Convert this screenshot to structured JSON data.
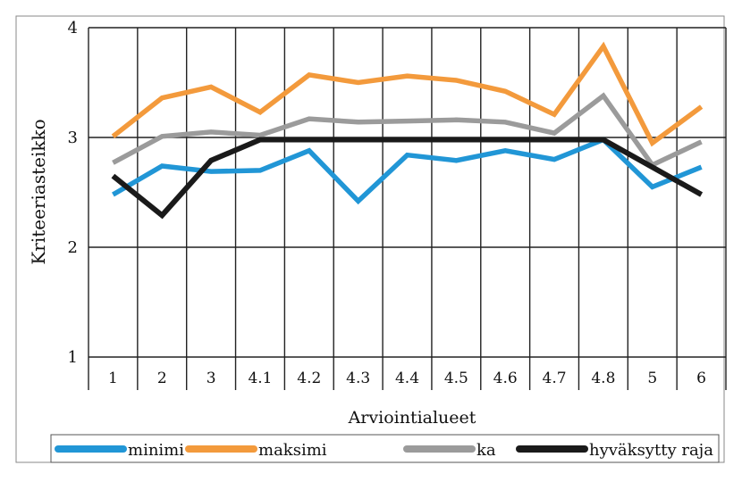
{
  "chart_data": {
    "type": "line",
    "xlabel": "Arviointialueet",
    "ylabel": "Kriteeriasteikko",
    "categories": [
      "1",
      "2",
      "3",
      "4.1",
      "4.2",
      "4.3",
      "4.4",
      "4.5",
      "4.6",
      "4.7",
      "4.8",
      "5",
      "6"
    ],
    "ylim": [
      1,
      4
    ],
    "yticks": [
      1,
      2,
      3,
      4
    ],
    "grid": true,
    "legend": "bottom",
    "series": [
      {
        "name": "minimi",
        "color": "#2196d6",
        "values": [
          2.48,
          2.74,
          2.69,
          2.7,
          2.88,
          2.42,
          2.84,
          2.79,
          2.88,
          2.8,
          2.98,
          2.55,
          2.73
        ]
      },
      {
        "name": "maksimi",
        "color": "#f39a3c",
        "values": [
          3.01,
          3.36,
          3.46,
          3.23,
          3.57,
          3.5,
          3.56,
          3.52,
          3.42,
          3.21,
          3.83,
          2.95,
          3.28
        ]
      },
      {
        "name": "ka",
        "color": "#9b9b9b",
        "values": [
          2.77,
          3.01,
          3.05,
          3.02,
          3.17,
          3.14,
          3.15,
          3.16,
          3.14,
          3.04,
          3.38,
          2.75,
          2.96
        ]
      },
      {
        "name": "hyväksytty raja",
        "color": "#1a1a1a",
        "values": [
          2.65,
          2.29,
          2.79,
          2.98,
          2.98,
          2.98,
          2.98,
          2.98,
          2.98,
          2.98,
          2.98,
          2.73,
          2.48
        ]
      }
    ]
  }
}
